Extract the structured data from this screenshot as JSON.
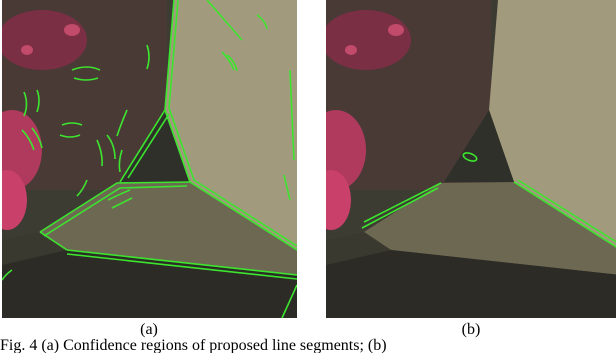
{
  "figure": {
    "panels": [
      {
        "label": "(a)"
      },
      {
        "label": "(b)"
      }
    ],
    "caption": "Fig. 4 (a) Confidence regions of proposed line segments; (b)"
  }
}
